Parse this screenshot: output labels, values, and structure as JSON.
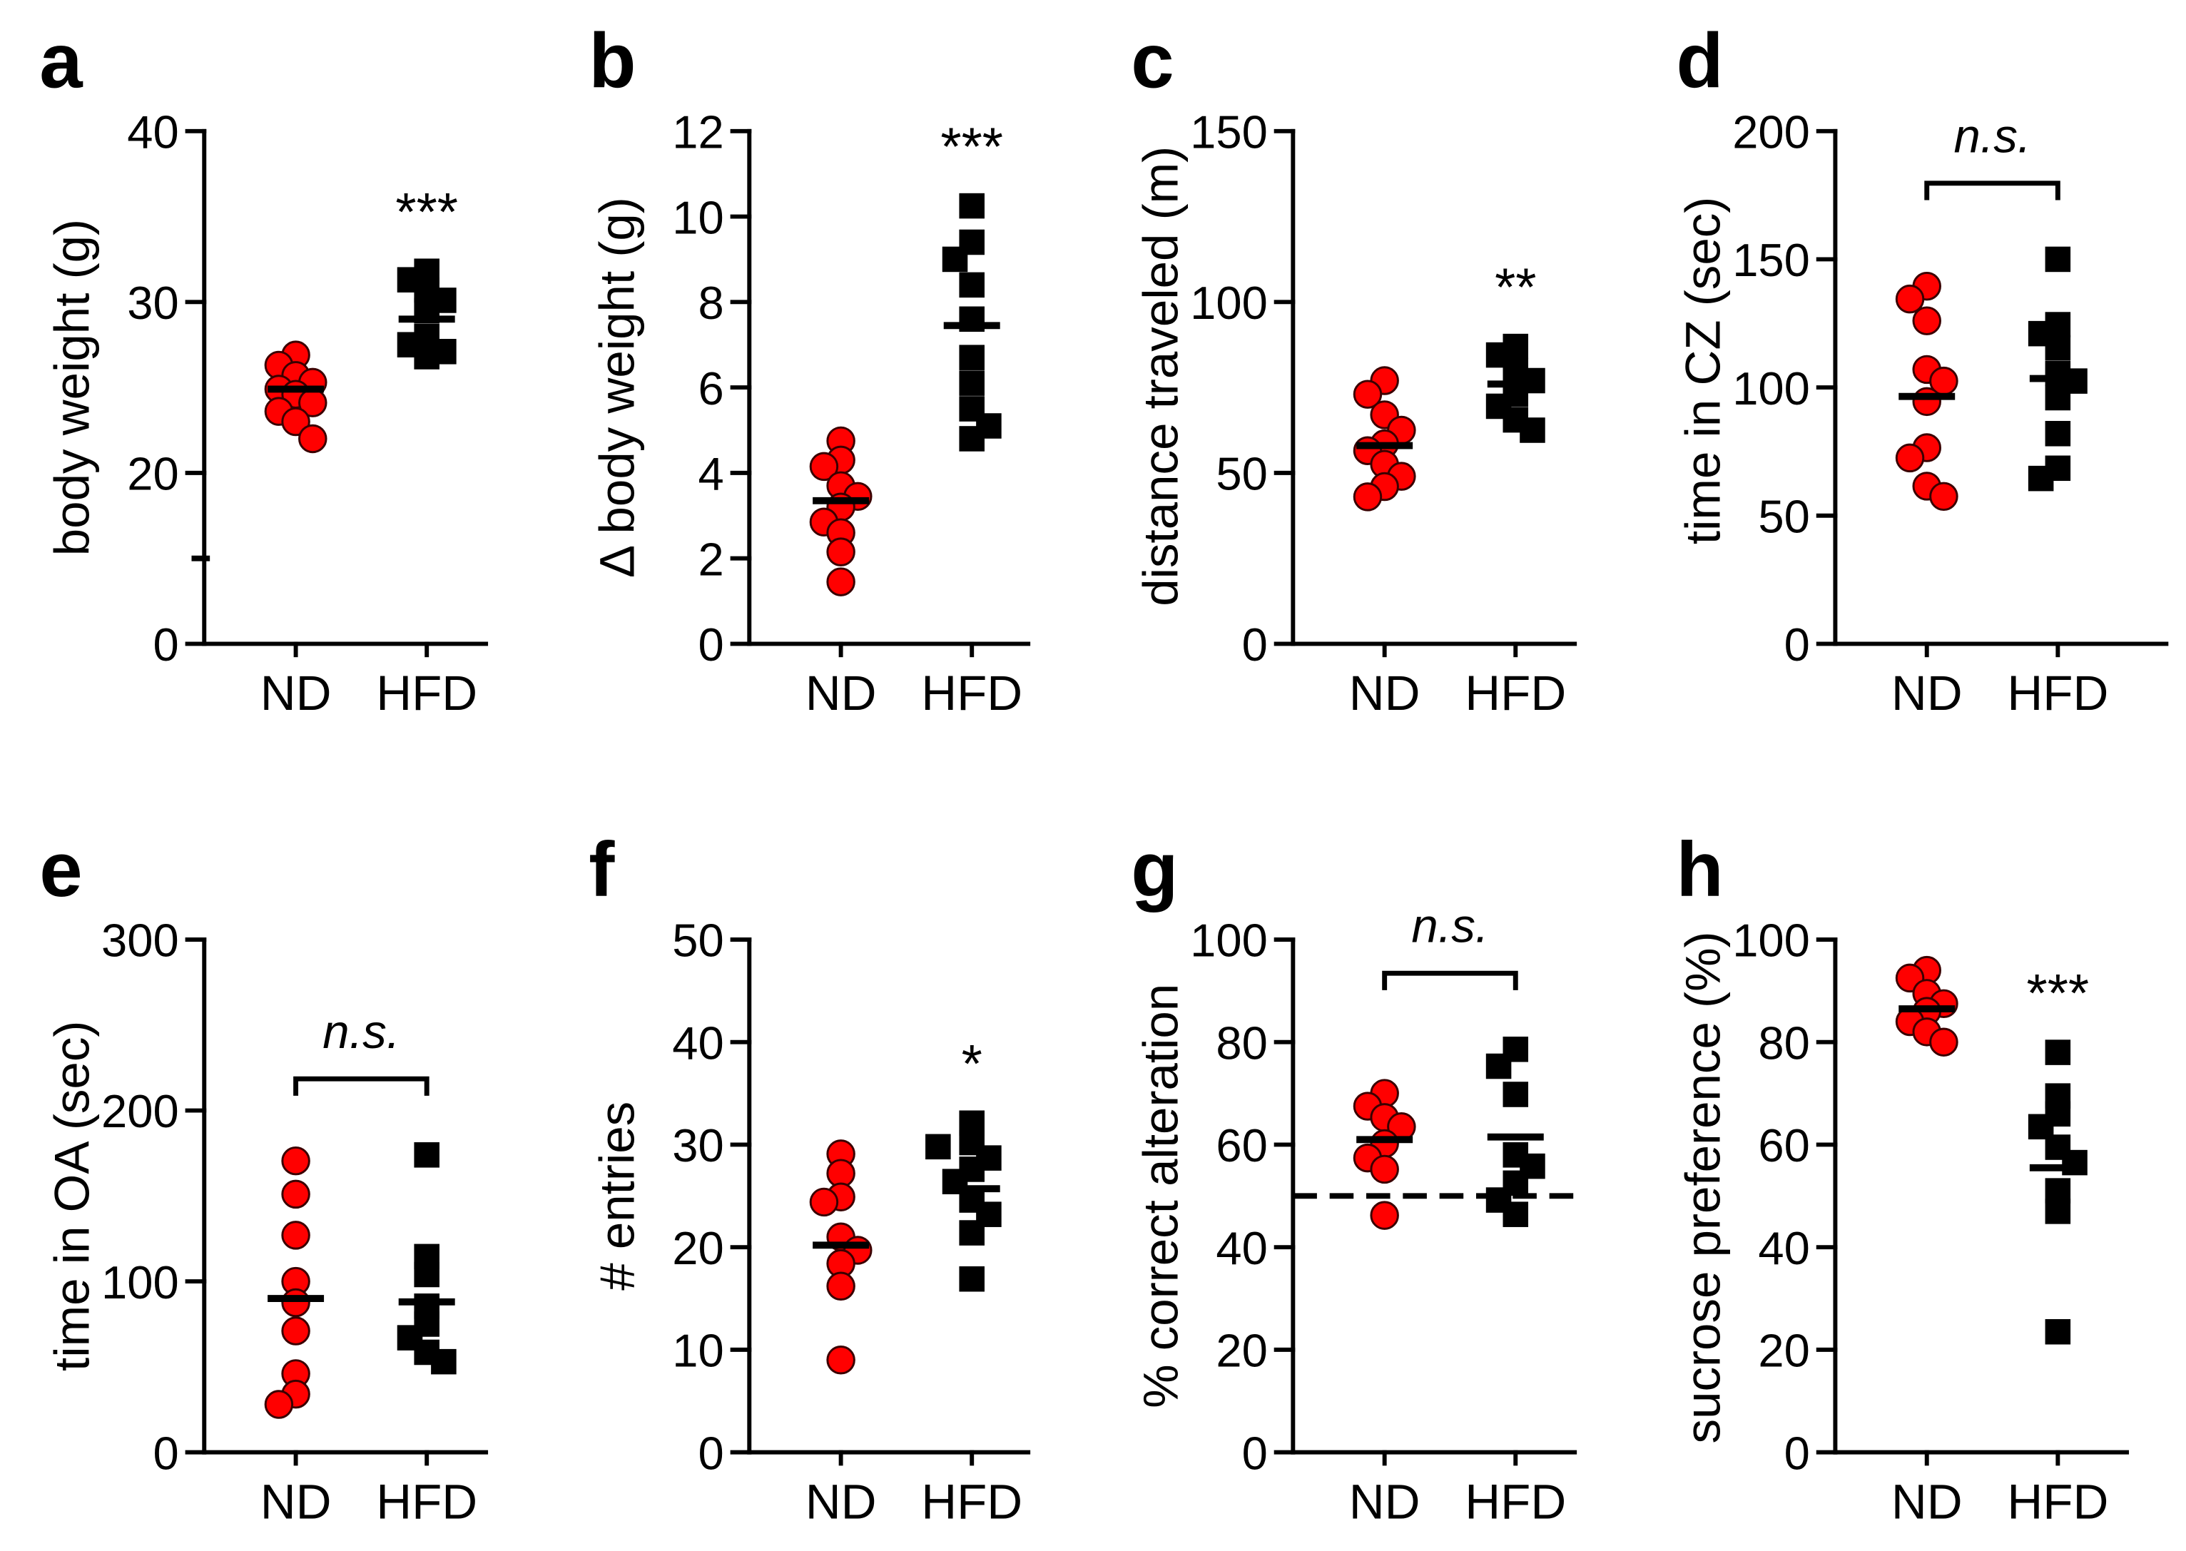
{
  "chart_data": [
    {
      "panel": "a",
      "type": "scatter",
      "ylabel": "body weight (g)",
      "categories": [
        "ND",
        "HFD"
      ],
      "ylim": [
        0,
        40
      ],
      "yticks": [
        0,
        20,
        30,
        40
      ],
      "axis_break": [
        0,
        10
      ],
      "series": [
        {
          "color": "#ff0000",
          "values": [
            26.9,
            26.3,
            25.7,
            25.3,
            24.9,
            24.6,
            24.1,
            23.6,
            23.0,
            22.0
          ],
          "mean": 24.9
        },
        {
          "color": "#000000",
          "values": [
            31.8,
            31.3,
            30.7,
            30.1,
            29.5,
            28.0,
            27.5,
            27.1,
            26.8
          ],
          "mean": 29.0
        }
      ],
      "significance": {
        "label": "***",
        "over": 1
      }
    },
    {
      "panel": "b",
      "type": "scatter",
      "ylabel": "Δ body weight (g)",
      "categories": [
        "ND",
        "HFD"
      ],
      "ylim": [
        0,
        12
      ],
      "yticks": [
        0,
        2,
        4,
        6,
        8,
        10,
        12
      ],
      "series": [
        {
          "color": "#ff0000",
          "values": [
            4.75,
            4.3,
            4.15,
            3.7,
            3.45,
            3.2,
            2.85,
            2.6,
            2.15,
            1.45
          ],
          "mean": 3.35
        },
        {
          "color": "#000000",
          "values": [
            10.25,
            9.4,
            9.0,
            8.4,
            7.6,
            6.7,
            6.1,
            5.5,
            5.1,
            4.8
          ],
          "mean": 7.45
        }
      ],
      "significance": {
        "label": "***",
        "over": 1
      }
    },
    {
      "panel": "c",
      "type": "scatter",
      "ylabel": "distance traveled (m)",
      "categories": [
        "ND",
        "HFD"
      ],
      "ylim": [
        0,
        150
      ],
      "yticks": [
        0,
        50,
        100,
        150
      ],
      "series": [
        {
          "color": "#ff0000",
          "values": [
            77,
            73,
            67,
            62.5,
            58.5,
            56.5,
            52.5,
            49,
            46,
            43
          ],
          "mean": 58
        },
        {
          "color": "#000000",
          "values": [
            87,
            84.5,
            80,
            77,
            73,
            69.5,
            65.5,
            62.5
          ],
          "mean": 76
        }
      ],
      "significance": {
        "label": "**",
        "over": 1
      }
    },
    {
      "panel": "d",
      "type": "scatter",
      "ylabel": "time in CZ (sec)",
      "categories": [
        "ND",
        "HFD"
      ],
      "ylim": [
        0,
        200
      ],
      "yticks": [
        0,
        50,
        100,
        150,
        200
      ],
      "series": [
        {
          "color": "#ff0000",
          "values": [
            139.5,
            134.5,
            126,
            107,
            102.5,
            94.5,
            76.5,
            72.5,
            61.5,
            57.5
          ],
          "mean": 96.5
        },
        {
          "color": "#000000",
          "values": [
            150,
            124.5,
            121,
            115.5,
            105.5,
            102.5,
            96,
            82,
            68.5,
            64.5
          ],
          "mean": 103.5
        }
      ],
      "significance": {
        "label": "n.s.",
        "bracket": [
          0,
          1
        ]
      }
    },
    {
      "panel": "e",
      "type": "scatter",
      "ylabel": "time in OA (sec)",
      "categories": [
        "ND",
        "HFD"
      ],
      "ylim": [
        0,
        300
      ],
      "yticks": [
        0,
        100,
        200,
        300
      ],
      "series": [
        {
          "color": "#ff0000",
          "values": [
            170.5,
            151,
            127,
            100,
            87.5,
            71,
            46,
            34,
            28
          ],
          "mean": 90
        },
        {
          "color": "#000000",
          "values": [
            174,
            114.5,
            104,
            85.5,
            75,
            67,
            58.5,
            53
          ],
          "mean": 88
        }
      ],
      "significance": {
        "label": "n.s.",
        "bracket": [
          0,
          1
        ]
      }
    },
    {
      "panel": "f",
      "type": "scatter",
      "ylabel": "# entries",
      "categories": [
        "ND",
        "HFD"
      ],
      "ylim": [
        0,
        50
      ],
      "yticks": [
        0,
        10,
        20,
        30,
        40,
        50
      ],
      "series": [
        {
          "color": "#ff0000",
          "values": [
            29.1,
            27.2,
            24.9,
            24.4,
            21.0,
            19.7,
            18.4,
            16.2,
            9.0
          ],
          "mean": 20.2
        },
        {
          "color": "#000000",
          "values": [
            32.1,
            30.2,
            29.8,
            28.7,
            27.6,
            26.4,
            24.6,
            23.2,
            21.4,
            16.9
          ],
          "mean": 25.7
        }
      ],
      "significance": {
        "label": "*",
        "over": 1
      }
    },
    {
      "panel": "g",
      "type": "scatter",
      "ylabel": "% correct alteration",
      "categories": [
        "ND",
        "HFD"
      ],
      "ylim": [
        0,
        100
      ],
      "yticks": [
        0,
        20,
        40,
        60,
        80,
        100
      ],
      "reference_line": 50,
      "series": [
        {
          "color": "#ff0000",
          "values": [
            70,
            67.5,
            65.3,
            63.5,
            60.2,
            57.4,
            55.2,
            46.2
          ],
          "mean": 61
        },
        {
          "color": "#000000",
          "values": [
            78.6,
            75.3,
            69.8,
            58,
            55.8,
            52.5,
            49.2,
            46.4
          ],
          "mean": 61.5
        }
      ],
      "significance": {
        "label": "n.s.",
        "bracket": [
          0,
          1
        ]
      }
    },
    {
      "panel": "h",
      "type": "scatter",
      "ylabel": "sucrose preference (%)",
      "categories": [
        "ND",
        "HFD"
      ],
      "ylim": [
        0,
        100
      ],
      "yticks": [
        0,
        20,
        40,
        60,
        80,
        100
      ],
      "series": [
        {
          "color": "#ff0000",
          "values": [
            94,
            92.5,
            89.5,
            87.5,
            86,
            84,
            82,
            80
          ],
          "mean": 86.5
        },
        {
          "color": "#000000",
          "values": [
            78,
            69.5,
            66,
            63.5,
            59.5,
            56.5,
            51,
            47,
            23.5
          ],
          "mean": 55.5
        }
      ],
      "significance": {
        "label": "***",
        "over": 1
      }
    }
  ]
}
